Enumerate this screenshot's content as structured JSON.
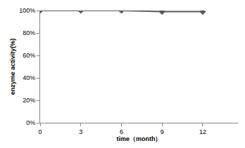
{
  "chart_data": {
    "type": "line",
    "x_label": "time（month）",
    "y_label": "enzyme activity(%)",
    "x": [
      0,
      3,
      6,
      9,
      12
    ],
    "values": [
      100,
      100,
      100,
      99,
      99
    ],
    "color": "#595959",
    "marker": "diamond",
    "xlim": [
      0,
      14.6
    ],
    "xticks": [
      0,
      3,
      6,
      9,
      12
    ],
    "ylim": [
      0,
      100
    ],
    "yticks": [
      {
        "value": 0,
        "label": "0%"
      },
      {
        "value": 20,
        "label": "20%"
      },
      {
        "value": 40,
        "label": "40%"
      },
      {
        "value": 60,
        "label": "60%"
      },
      {
        "value": 80,
        "label": "80%"
      },
      {
        "value": 100,
        "label": "100%"
      }
    ],
    "grid": false
  }
}
